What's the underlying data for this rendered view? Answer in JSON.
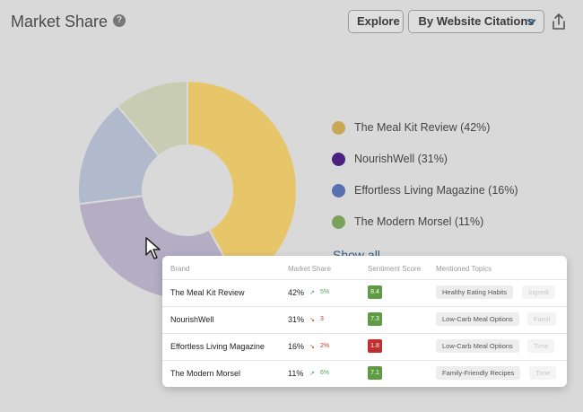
{
  "header": {
    "title": "Market Share",
    "help_glyph": "?",
    "explore_label": "Explore",
    "sort_label": "By Website Citations"
  },
  "chart_data": {
    "type": "pie",
    "donut": true,
    "categories": [
      "The Meal Kit Review",
      "NourishWell",
      "Effortless Living Magazine",
      "The Modern Morsel"
    ],
    "values": [
      42,
      31,
      16,
      11
    ],
    "colors": [
      "#e7c66a",
      "#b4adc4",
      "#b1b9cc",
      "#c7ccb3"
    ]
  },
  "legend": {
    "items": [
      {
        "label": "The Meal Kit Review (42%)",
        "color": "#c8a857"
      },
      {
        "label": "NourishWell (31%)",
        "color": "#4a2080"
      },
      {
        "label": "Effortless Living Magazine (16%)",
        "color": "#5870ae"
      },
      {
        "label": "The Modern Morsel (11%)",
        "color": "#79a35c"
      }
    ],
    "show_all": "Show all"
  },
  "table": {
    "columns": [
      "Brand",
      "Market Share",
      "Sentiment Score",
      "Mentioned Topics"
    ],
    "rows": [
      {
        "brand": "The Meal Kit Review",
        "share": "42%",
        "trend": "up",
        "arrow": "↗",
        "change": "5%",
        "score": "8.4",
        "score_color": "#5e9b43",
        "topic": "Healthy Eating Habits",
        "topic2": "Ingredi"
      },
      {
        "brand": "NourishWell",
        "share": "31%",
        "trend": "down",
        "arrow": "↘",
        "change": "3",
        "score": "7.3",
        "score_color": "#5e9b43",
        "topic": "Low-Carb Meal Options",
        "topic2": "Famil"
      },
      {
        "brand": "Effortless Living Magazine",
        "share": "16%",
        "trend": "down",
        "arrow": "↘",
        "change": "2%",
        "score": "1.8",
        "score_color": "#c03030",
        "topic": "Low-Carb Meal Options",
        "topic2": "Time"
      },
      {
        "brand": "The Modern Morsel",
        "share": "11%",
        "trend": "up",
        "arrow": "↗",
        "change": "6%",
        "score": "7.1",
        "score_color": "#5e9b43",
        "topic": "Family-Friendly Recipes",
        "topic2": "Time"
      }
    ]
  }
}
